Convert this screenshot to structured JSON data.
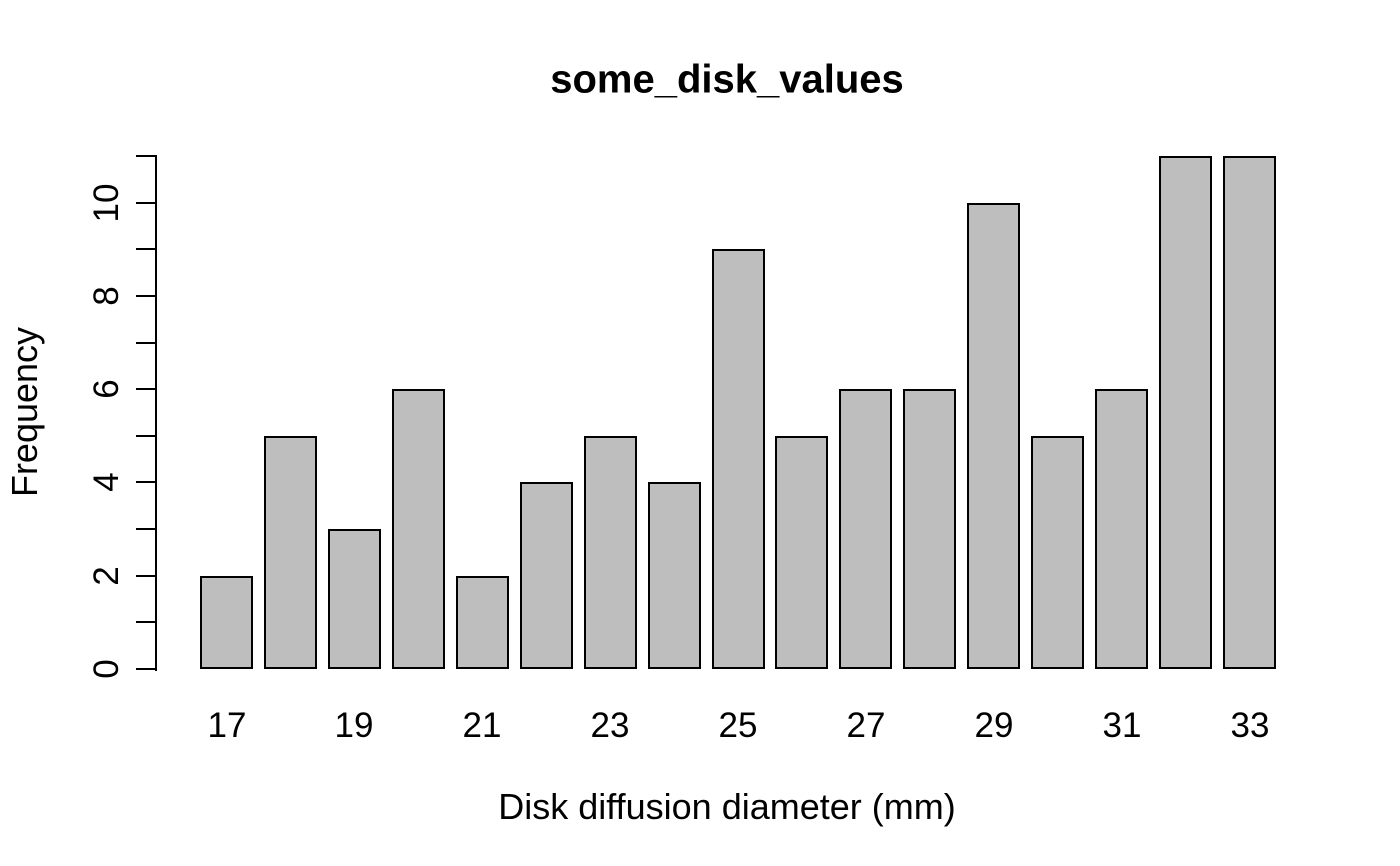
{
  "chart_data": {
    "type": "bar",
    "title": "some_disk_values",
    "xlabel": "Disk diffusion diameter (mm)",
    "ylabel": "Frequency",
    "categories": [
      17,
      18,
      19,
      20,
      21,
      22,
      23,
      24,
      25,
      26,
      27,
      28,
      29,
      30,
      31,
      32,
      33
    ],
    "values": [
      2,
      5,
      3,
      6,
      2,
      4,
      5,
      4,
      9,
      5,
      6,
      6,
      10,
      5,
      6,
      11,
      11
    ],
    "x_tick_labels": [
      "17",
      "19",
      "21",
      "23",
      "25",
      "27",
      "29",
      "31",
      "33"
    ],
    "y_tick_labels": [
      "0",
      "2",
      "4",
      "6",
      "8",
      "10"
    ],
    "y_tick_values": [
      0,
      1,
      2,
      3,
      4,
      5,
      6,
      7,
      8,
      9,
      10,
      11
    ],
    "ylim": [
      0,
      11
    ],
    "grid": false,
    "legend": "none",
    "bar_fill_color": "#BEBEBE",
    "bar_border_color": "#000000",
    "axis_color": "#000000",
    "background_color": "#FFFFFF"
  }
}
